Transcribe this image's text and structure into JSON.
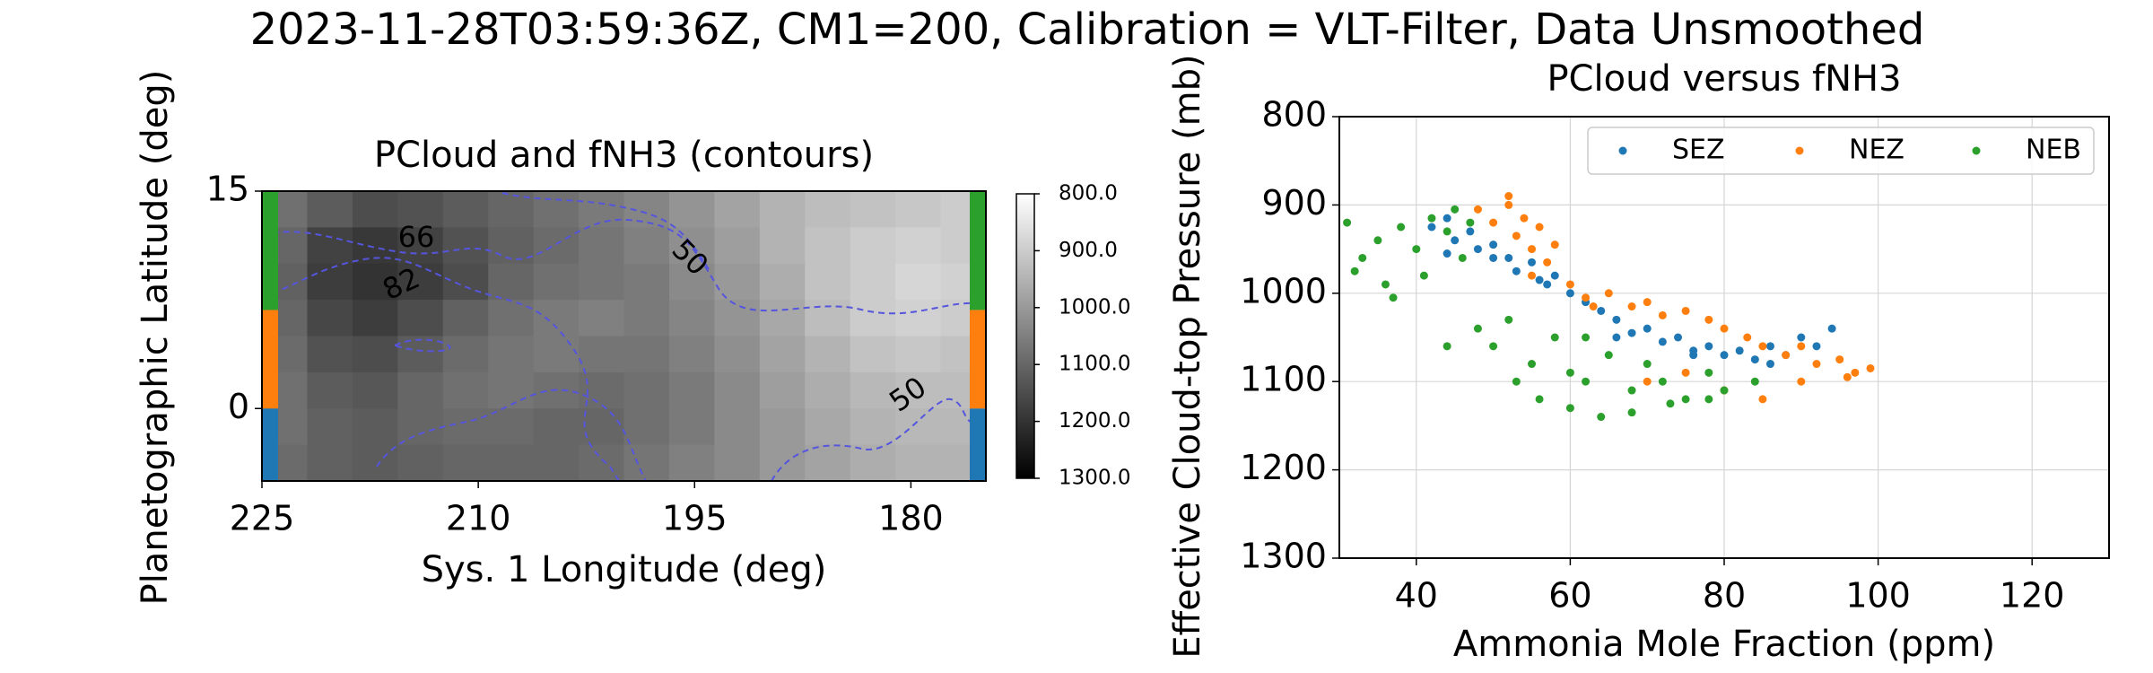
{
  "title": "2023-11-28T03:59:36Z, CM1=200, Calibration = VLT-Filter, Data Unsmoothed",
  "chart_data": [
    {
      "type": "heatmap",
      "title": "PCloud and fNH3 (contours)",
      "xlabel": "Sys. 1 Longitude (deg)",
      "ylabel": "Planetographic Latitude (deg)",
      "xlim": [
        225,
        174.8
      ],
      "ylim": [
        -5,
        15
      ],
      "xticks": [
        225,
        210,
        195,
        180
      ],
      "yticks": [
        0,
        15
      ],
      "colormap": "gray_r",
      "z": [
        [
          1080,
          1120,
          1150,
          1140,
          1120,
          1100,
          1080,
          1060,
          1040,
          1010,
          980,
          950,
          930,
          920,
          910,
          900
        ],
        [
          1100,
          1170,
          1190,
          1170,
          1140,
          1110,
          1090,
          1070,
          1050,
          1020,
          990,
          950,
          920,
          900,
          890,
          900
        ],
        [
          1110,
          1180,
          1200,
          1180,
          1150,
          1100,
          1080,
          1070,
          1060,
          1030,
          1000,
          960,
          920,
          900,
          880,
          890
        ],
        [
          1100,
          1160,
          1180,
          1150,
          1110,
          1080,
          1060,
          1050,
          1060,
          1040,
          1010,
          970,
          930,
          900,
          890,
          900
        ],
        [
          1090,
          1140,
          1150,
          1120,
          1090,
          1070,
          1060,
          1070,
          1070,
          1050,
          1020,
          980,
          950,
          920,
          910,
          920
        ],
        [
          1080,
          1120,
          1130,
          1100,
          1080,
          1070,
          1080,
          1090,
          1080,
          1060,
          1030,
          990,
          960,
          940,
          930,
          930
        ],
        [
          1080,
          1110,
          1120,
          1100,
          1090,
          1090,
          1100,
          1100,
          1080,
          1060,
          1030,
          1000,
          970,
          950,
          940,
          940
        ],
        [
          1090,
          1110,
          1120,
          1110,
          1100,
          1100,
          1100,
          1090,
          1070,
          1050,
          1030,
          1000,
          980,
          960,
          950,
          950
        ]
      ],
      "clim": [
        800,
        1300
      ],
      "cticks": [
        {
          "value": 800,
          "label": "800.0"
        },
        {
          "value": 900,
          "label": "900.0"
        },
        {
          "value": 1000,
          "label": "1000.0"
        },
        {
          "value": 1100,
          "label": "1100.0"
        },
        {
          "value": 1200,
          "label": "1200.0"
        },
        {
          "value": 1300,
          "label": "1300.0"
        }
      ],
      "contour_labels": [
        66,
        82,
        50,
        50
      ],
      "contour_color": "#5555dd",
      "bands": [
        {
          "range": [
            -5,
            0
          ],
          "color": "#1f77b4"
        },
        {
          "range": [
            0,
            6.8
          ],
          "color": "#ff7f0e"
        },
        {
          "range": [
            6.8,
            15
          ],
          "color": "#2ca02c"
        }
      ]
    },
    {
      "type": "scatter",
      "title": "PCloud versus fNH3",
      "xlabel": "Ammonia Mole Fraction (ppm)",
      "ylabel": "Effective Cloud-top Pressure (mb)",
      "xlim": [
        30,
        130
      ],
      "ylim": [
        1300,
        800
      ],
      "xticks": [
        40,
        60,
        80,
        100,
        120
      ],
      "yticks": [
        800,
        900,
        1000,
        1100,
        1200,
        1300
      ],
      "grid": true,
      "legend": "upper right",
      "series": [
        {
          "name": "SEZ",
          "color": "#1f77b4",
          "x": [
            42,
            44,
            45,
            47,
            48,
            50,
            52,
            53,
            55,
            57,
            58,
            60,
            62,
            64,
            66,
            68,
            70,
            72,
            74,
            76,
            78,
            80,
            82,
            84,
            86,
            88,
            90,
            92,
            94,
            44,
            50,
            56,
            66,
            76,
            86
          ],
          "y": [
            925,
            915,
            940,
            930,
            950,
            945,
            960,
            975,
            965,
            990,
            980,
            1000,
            1010,
            1020,
            1030,
            1045,
            1040,
            1055,
            1050,
            1065,
            1060,
            1070,
            1065,
            1075,
            1060,
            1070,
            1050,
            1060,
            1040,
            955,
            960,
            985,
            1050,
            1070,
            1080
          ]
        },
        {
          "name": "NEZ",
          "color": "#ff7f0e",
          "x": [
            48,
            50,
            52,
            53,
            54,
            55,
            56,
            57,
            58,
            52,
            55,
            60,
            62,
            65,
            68,
            70,
            72,
            75,
            78,
            80,
            83,
            85,
            88,
            90,
            92,
            95,
            97,
            99,
            70,
            75,
            80,
            85,
            90,
            96,
            63
          ],
          "y": [
            905,
            920,
            900,
            935,
            915,
            950,
            925,
            965,
            945,
            890,
            980,
            990,
            1005,
            1000,
            1015,
            1010,
            1025,
            1020,
            1030,
            1040,
            1050,
            1060,
            1070,
            1060,
            1080,
            1075,
            1090,
            1085,
            1100,
            1090,
            1110,
            1120,
            1100,
            1095,
            1015
          ]
        },
        {
          "name": "NEB",
          "color": "#2ca02c",
          "x": [
            31,
            33,
            35,
            36,
            38,
            40,
            42,
            44,
            45,
            47,
            32,
            37,
            41,
            46,
            48,
            50,
            52,
            55,
            58,
            60,
            62,
            65,
            68,
            70,
            72,
            75,
            78,
            80,
            84,
            56,
            60,
            64,
            68,
            73,
            78,
            44,
            53,
            62
          ],
          "y": [
            920,
            960,
            940,
            990,
            925,
            950,
            915,
            930,
            905,
            920,
            975,
            1005,
            980,
            960,
            1040,
            1060,
            1030,
            1080,
            1050,
            1090,
            1100,
            1070,
            1110,
            1080,
            1100,
            1120,
            1090,
            1110,
            1100,
            1120,
            1130,
            1140,
            1135,
            1125,
            1120,
            1060,
            1100,
            1050
          ]
        }
      ]
    }
  ]
}
